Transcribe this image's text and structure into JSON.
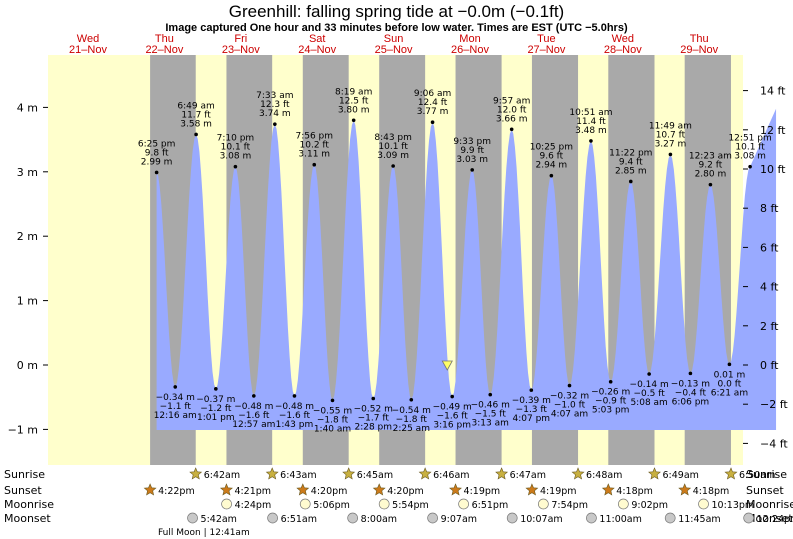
{
  "title": "Greenhill: falling  spring tide at −0.0m (−0.1ft)",
  "subtitle": "Image captured One hour and 33 minutes before low water. Times are EST (UTC −5.0hrs)",
  "days": [
    {
      "dow": "Wed",
      "date": "21–Nov"
    },
    {
      "dow": "Thu",
      "date": "22–Nov"
    },
    {
      "dow": "Fri",
      "date": "23–Nov"
    },
    {
      "dow": "Sat",
      "date": "24–Nov"
    },
    {
      "dow": "Sun",
      "date": "25–Nov"
    },
    {
      "dow": "Mon",
      "date": "26–Nov"
    },
    {
      "dow": "Tue",
      "date": "27–Nov"
    },
    {
      "dow": "Wed",
      "date": "28–Nov"
    },
    {
      "dow": "Thu",
      "date": "29–Nov"
    }
  ],
  "colors": {
    "day": "#ffffcc",
    "night": "#a9a9a9",
    "water": "#99aaff",
    "dayText": "#cc0000",
    "sunStar": "#c8b040",
    "sunsetStar": "#cc7a1a"
  },
  "chart_data": {
    "type": "area",
    "title": "Greenhill: falling  spring tide at −0.0m (−0.1ft)",
    "left_axis": {
      "unit": "m",
      "ticks": [
        -1,
        0,
        1,
        2,
        3,
        4
      ],
      "tick_labels": [
        "−1 m",
        "0 m",
        "1 m",
        "2 m",
        "3 m",
        "4 m"
      ]
    },
    "right_axis": {
      "unit": "ft",
      "ticks": [
        -4,
        -2,
        0,
        2,
        4,
        6,
        8,
        10,
        12,
        14
      ],
      "tick_labels": [
        "−4 ft",
        "−2 ft",
        "0 ft",
        "2 ft",
        "4 ft",
        "6 ft",
        "8 ft",
        "10 ft",
        "12 ft",
        "14 ft"
      ]
    },
    "ylim_m": [
      -1.55,
      4.85
    ],
    "x_range_days": [
      "2018-11-21",
      "2018-11-30"
    ],
    "high_tides": [
      {
        "day": 0,
        "time": "6:25 pm",
        "ft": "9.8 ft",
        "m": "2.99 m",
        "value": 2.99
      },
      {
        "day": 1,
        "time": "6:49 am",
        "ft": "11.7 ft",
        "m": "3.58 m",
        "value": 3.58
      },
      {
        "day": 1,
        "time": "7:10 pm",
        "ft": "10.1 ft",
        "m": "3.08 m",
        "value": 3.08
      },
      {
        "day": 2,
        "time": "7:33 am",
        "ft": "12.3 ft",
        "m": "3.74 m",
        "value": 3.74
      },
      {
        "day": 2,
        "time": "7:56 pm",
        "ft": "10.2 ft",
        "m": "3.11 m",
        "value": 3.11
      },
      {
        "day": 3,
        "time": "8:19 am",
        "ft": "12.5 ft",
        "m": "3.80 m",
        "value": 3.8
      },
      {
        "day": 3,
        "time": "8:43 pm",
        "ft": "10.1 ft",
        "m": "3.09 m",
        "value": 3.09
      },
      {
        "day": 4,
        "time": "9:06 am",
        "ft": "12.4 ft",
        "m": "3.77 m",
        "value": 3.77
      },
      {
        "day": 4,
        "time": "9:33 pm",
        "ft": "9.9 ft",
        "m": "3.03 m",
        "value": 3.03
      },
      {
        "day": 5,
        "time": "9:57 am",
        "ft": "12.0 ft",
        "m": "3.66 m",
        "value": 3.66
      },
      {
        "day": 5,
        "time": "10:25 pm",
        "ft": "9.6 ft",
        "m": "2.94 m",
        "value": 2.94
      },
      {
        "day": 6,
        "time": "10:51 am",
        "ft": "11.4 ft",
        "m": "3.48 m",
        "value": 3.48
      },
      {
        "day": 6,
        "time": "11:22 pm",
        "ft": "9.4 ft",
        "m": "2.85 m",
        "value": 2.85
      },
      {
        "day": 7,
        "time": "11:49 am",
        "ft": "10.7 ft",
        "m": "3.27 m",
        "value": 3.27
      },
      {
        "day": 8,
        "time": "12:23 am",
        "ft": "9.2 ft",
        "m": "2.80 m",
        "value": 2.8
      },
      {
        "day": 8,
        "time": "12:51 pm",
        "ft": "10.1 ft",
        "m": "3.08 m",
        "value": 3.08
      }
    ],
    "low_tides": [
      {
        "day": 1,
        "time": "12:16 am",
        "ft": "−1.1 ft",
        "m": "−0.34 m",
        "value": -0.34
      },
      {
        "day": 1,
        "time": "1:01 pm",
        "ft": "−1.2 ft",
        "m": "−0.37 m",
        "value": -0.37
      },
      {
        "day": 2,
        "time": "12:57 am",
        "ft": "−1.6 ft",
        "m": "−0.48 m",
        "value": -0.48
      },
      {
        "day": 2,
        "time": "1:43 pm",
        "ft": "−1.6 ft",
        "m": "−0.48 m",
        "value": -0.48
      },
      {
        "day": 3,
        "time": "1:40 am",
        "ft": "−1.8 ft",
        "m": "−0.55 m",
        "value": -0.55
      },
      {
        "day": 3,
        "time": "2:28 pm",
        "ft": "−1.7 ft",
        "m": "−0.52 m",
        "value": -0.52
      },
      {
        "day": 4,
        "time": "2:25 am",
        "ft": "−1.8 ft",
        "m": "−0.54 m",
        "value": -0.54
      },
      {
        "day": 4,
        "time": "3:16 pm",
        "ft": "−1.6 ft",
        "m": "−0.49 m",
        "value": -0.49
      },
      {
        "day": 5,
        "time": "3:13 am",
        "ft": "−1.5 ft",
        "m": "−0.46 m",
        "value": -0.46
      },
      {
        "day": 5,
        "time": "4:07 pm",
        "ft": "−1.3 ft",
        "m": "−0.39 m",
        "value": -0.39
      },
      {
        "day": 6,
        "time": "4:07 am",
        "ft": "−1.0 ft",
        "m": "−0.32 m",
        "value": -0.32
      },
      {
        "day": 6,
        "time": "5:03 pm",
        "ft": "−0.9 ft",
        "m": "−0.26 m",
        "value": -0.26
      },
      {
        "day": 7,
        "time": "5:08 am",
        "ft": "−0.5 ft",
        "m": "−0.14 m",
        "value": -0.14
      },
      {
        "day": 7,
        "time": "6:06 pm",
        "ft": "−0.4 ft",
        "m": "−0.13 m",
        "value": -0.13
      },
      {
        "day": 8,
        "time": "6:21 am",
        "ft": "0.0 ft",
        "m": "0.01 m",
        "value": 0.01
      }
    ],
    "current": {
      "label": "falling  spring tide",
      "value": -0.0,
      "time": "2018-11-25 13:43"
    },
    "rows": {
      "labels": [
        "Sunrise",
        "Sunset",
        "Moonrise",
        "Moonset"
      ],
      "sunrise": [
        {
          "day": 1,
          "time": "6:42am"
        },
        {
          "day": 2,
          "time": "6:43am"
        },
        {
          "day": 3,
          "time": "6:45am"
        },
        {
          "day": 4,
          "time": "6:46am"
        },
        {
          "day": 5,
          "time": "6:47am"
        },
        {
          "day": 6,
          "time": "6:48am"
        },
        {
          "day": 7,
          "time": "6:49am"
        },
        {
          "day": 8,
          "time": "6:50am"
        }
      ],
      "sunset": [
        {
          "day": 0,
          "time": "4:22pm"
        },
        {
          "day": 1,
          "time": "4:21pm"
        },
        {
          "day": 2,
          "time": "4:20pm"
        },
        {
          "day": 3,
          "time": "4:20pm"
        },
        {
          "day": 4,
          "time": "4:19pm"
        },
        {
          "day": 5,
          "time": "4:19pm"
        },
        {
          "day": 6,
          "time": "4:18pm"
        },
        {
          "day": 7,
          "time": "4:18pm"
        }
      ],
      "moonrise": [
        {
          "day": 1,
          "time": "4:24pm"
        },
        {
          "day": 2,
          "time": "5:06pm"
        },
        {
          "day": 3,
          "time": "5:54pm"
        },
        {
          "day": 4,
          "time": "6:51pm"
        },
        {
          "day": 5,
          "time": "7:54pm"
        },
        {
          "day": 6,
          "time": "9:02pm"
        },
        {
          "day": 7,
          "time": "10:13pm"
        }
      ],
      "moonset": [
        {
          "day": 1,
          "time": "5:42am"
        },
        {
          "day": 2,
          "time": "6:51am"
        },
        {
          "day": 3,
          "time": "8:00am"
        },
        {
          "day": 4,
          "time": "9:07am"
        },
        {
          "day": 5,
          "time": "10:07am"
        },
        {
          "day": 6,
          "time": "11:00am"
        },
        {
          "day": 7,
          "time": "11:45am"
        },
        {
          "day": 8,
          "time": "12:24pm"
        }
      ],
      "full_moon": "Full Moon | 12:41am"
    }
  }
}
